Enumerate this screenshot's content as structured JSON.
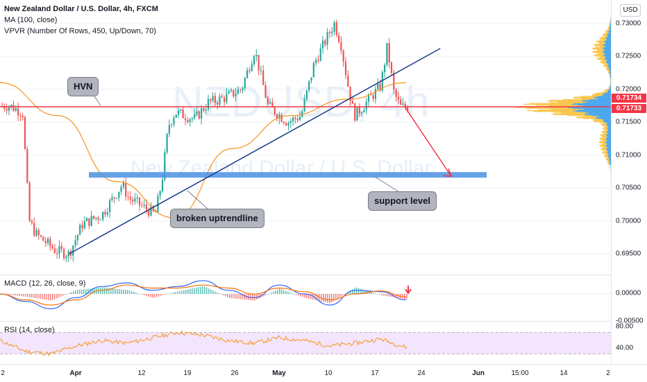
{
  "header": {
    "symbol_title": "New Zealand Dollar / U.S. Dollar, 4h, FXCM",
    "ma_label": "MA (100, close)",
    "vpvr_label": "VPVR (Number Of Rows, 450, Up/Down, 70)",
    "currency_button": "USD"
  },
  "watermark": {
    "ticker": "NZDUSD, 4h",
    "name": "New Zealand Dollar / U.S. Dollar"
  },
  "annotations": {
    "hvn": "HVN",
    "broken_uptrendline": "broken uptrendline",
    "support_level": "support level"
  },
  "price_tags": {
    "upper": "0.71734",
    "lower": "0.71733"
  },
  "colors": {
    "up": "#26a69a",
    "down": "#ef5350",
    "ma_line": "#f7931a",
    "hvn_line": "#f23645",
    "trendline": "#1a3a8a",
    "support_band": "#4a90e2",
    "arrow": "#f23645",
    "macd_line": "#2962ff",
    "signal_line": "#ff6d00",
    "rsi_line": "#f7931a",
    "rsi_band": "#f3e5fb",
    "vp_up": "#4aa8f0",
    "vp_down": "#f9c74f"
  },
  "chart_data": [
    {
      "type": "candlestick",
      "title": "New Zealand Dollar / U.S. Dollar, 4h, FXCM",
      "ylim": [
        0.6925,
        0.7325
      ],
      "y_ticks": [
        "0.73000",
        "0.72500",
        "0.72000",
        "0.71500",
        "0.71000",
        "0.70500",
        "0.70000",
        "0.69500"
      ],
      "x_ticks": [
        "2",
        "Apr",
        "12",
        "19",
        "26",
        "May",
        "10",
        "17",
        "24",
        "Jun",
        "15:00",
        "14",
        "2"
      ],
      "approx_price_path": [
        {
          "date": "Mar 22",
          "close": 0.7175
        },
        {
          "date": "Mar 24",
          "close": 0.7165
        },
        {
          "date": "Mar 25",
          "close": 0.7
        },
        {
          "date": "Mar 26",
          "close": 0.698
        },
        {
          "date": "Mar 29",
          "close": 0.6955
        },
        {
          "date": "Mar 31",
          "close": 0.695
        },
        {
          "date": "Apr 2",
          "close": 0.6995
        },
        {
          "date": "Apr 5",
          "close": 0.701
        },
        {
          "date": "Apr 8",
          "close": 0.7055
        },
        {
          "date": "Apr 9",
          "close": 0.7035
        },
        {
          "date": "Apr 13",
          "close": 0.701
        },
        {
          "date": "Apr 14",
          "close": 0.706
        },
        {
          "date": "Apr 15",
          "close": 0.7145
        },
        {
          "date": "Apr 16",
          "close": 0.7165
        },
        {
          "date": "Apr 19",
          "close": 0.7155
        },
        {
          "date": "Apr 21",
          "close": 0.718
        },
        {
          "date": "Apr 23",
          "close": 0.7185
        },
        {
          "date": "Apr 26",
          "close": 0.72
        },
        {
          "date": "Apr 28",
          "close": 0.726
        },
        {
          "date": "Apr 30",
          "close": 0.7175
        },
        {
          "date": "May 3",
          "close": 0.715
        },
        {
          "date": "May 5",
          "close": 0.716
        },
        {
          "date": "May 7",
          "close": 0.724
        },
        {
          "date": "May 10",
          "close": 0.73
        },
        {
          "date": "May 11",
          "close": 0.727
        },
        {
          "date": "May 12",
          "close": 0.721
        },
        {
          "date": "May 13",
          "close": 0.716
        },
        {
          "date": "May 14",
          "close": 0.717
        },
        {
          "date": "May 17",
          "close": 0.7205
        },
        {
          "date": "May 18",
          "close": 0.7265
        },
        {
          "date": "May 19",
          "close": 0.7195
        },
        {
          "date": "May 20",
          "close": 0.7173
        }
      ],
      "ma": {
        "name": "MA (100, close)",
        "approx_values": [
          0.721,
          0.716,
          0.706,
          0.7005,
          0.711,
          0.716,
          0.7185,
          0.721
        ]
      },
      "hvn_level": 0.71734,
      "support_level": 0.707,
      "trendline": {
        "start": {
          "date": "Mar 31",
          "value": 0.695
        },
        "end": {
          "date": "May 26",
          "value": 0.7262
        }
      },
      "volume_profile": {
        "peak_price": 0.7173,
        "label": "VPVR (Number Of Rows, 450, Up/Down, 70)"
      }
    },
    {
      "type": "line",
      "title": "MACD (12, 26, close, 9)",
      "y_ticks": [
        "0.00000",
        "-0.00500"
      ],
      "series": [
        {
          "name": "MACD",
          "approx_values": [
            0.0,
            -0.001,
            -0.002,
            -0.0005,
            0.001,
            0.0015,
            0.0005,
            0.001,
            0.0018,
            0.0005,
            -0.0005,
            0.0012,
            0.0,
            -0.0015,
            0.0005,
            0.0003,
            -0.0008
          ]
        },
        {
          "name": "Signal",
          "approx_values": [
            0.0,
            -0.0008,
            -0.0015,
            -0.0008,
            0.0005,
            0.0012,
            0.0008,
            0.0008,
            0.0012,
            0.0008,
            0.0,
            0.0008,
            0.0003,
            -0.0008,
            0.0,
            0.0004,
            -0.0004
          ]
        }
      ]
    },
    {
      "type": "line",
      "title": "RSI (14, close)",
      "y_ticks": [
        "80.00",
        "40.00"
      ],
      "band": [
        30,
        70
      ],
      "series": [
        {
          "name": "RSI",
          "approx_values": [
            55,
            35,
            30,
            45,
            55,
            50,
            60,
            70,
            65,
            55,
            50,
            60,
            55,
            45,
            50,
            58,
            42
          ]
        }
      ]
    }
  ]
}
